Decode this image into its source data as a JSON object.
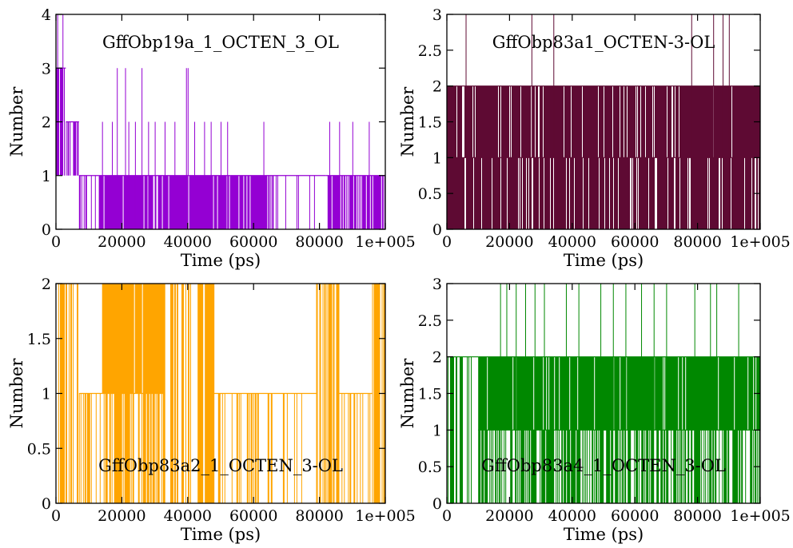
{
  "chart_data": [
    {
      "type": "line",
      "title": "GffObp19a_1_OCTEN_3_OL",
      "xlabel": "Time (ps)",
      "ylabel": "Number",
      "xlim": [
        0,
        100000
      ],
      "ylim": [
        0,
        4
      ],
      "xticks": [
        "0",
        "20000",
        "40000",
        "60000",
        "80000",
        "1e+005"
      ],
      "yticks": [
        "0",
        "1",
        "2",
        "3",
        "4"
      ],
      "color": "#9400D3",
      "grid": false,
      "series": [
        {
          "segments": [
            {
              "start": 0,
              "end": 3000,
              "base": 1,
              "hi": 3,
              "density": 0.7
            },
            {
              "start": 3000,
              "end": 7000,
              "base": 1,
              "hi": 2,
              "density": 0.6
            },
            {
              "start": 7000,
              "end": 13000,
              "base": 0,
              "hi": 1,
              "density": 0.4
            },
            {
              "start": 13000,
              "end": 53000,
              "base": 0,
              "hi": 1,
              "density": 0.9
            },
            {
              "start": 53000,
              "end": 66000,
              "base": 0,
              "hi": 1,
              "density": 0.85
            },
            {
              "start": 66000,
              "end": 82000,
              "base": 0,
              "hi": 1,
              "density": 0.15
            },
            {
              "start": 82000,
              "end": 100000,
              "base": 0,
              "hi": 1,
              "density": 0.75
            }
          ],
          "spikes": [
            {
              "x": 400,
              "y": 4
            },
            {
              "x": 2000,
              "y": 4
            },
            {
              "x": 18500,
              "y": 3
            },
            {
              "x": 21000,
              "y": 3
            },
            {
              "x": 26000,
              "y": 3
            },
            {
              "x": 39500,
              "y": 3
            },
            {
              "x": 40000,
              "y": 3
            },
            {
              "x": 14000,
              "y": 2
            },
            {
              "x": 17000,
              "y": 2
            },
            {
              "x": 22000,
              "y": 2
            },
            {
              "x": 24000,
              "y": 2
            },
            {
              "x": 28000,
              "y": 2
            },
            {
              "x": 30000,
              "y": 2
            },
            {
              "x": 33000,
              "y": 2
            },
            {
              "x": 36000,
              "y": 2
            },
            {
              "x": 42000,
              "y": 2
            },
            {
              "x": 45000,
              "y": 2
            },
            {
              "x": 47000,
              "y": 2
            },
            {
              "x": 50000,
              "y": 2
            },
            {
              "x": 52000,
              "y": 2
            },
            {
              "x": 63000,
              "y": 2
            },
            {
              "x": 83000,
              "y": 2
            },
            {
              "x": 86000,
              "y": 2
            },
            {
              "x": 90000,
              "y": 2
            },
            {
              "x": 95000,
              "y": 2
            }
          ]
        }
      ]
    },
    {
      "type": "line",
      "title": "GffObp83a1_OCTEN-3-OL",
      "xlabel": "Time (ps)",
      "ylabel": "Number",
      "xlim": [
        0,
        100000
      ],
      "ylim": [
        0,
        3
      ],
      "xticks": [
        "0",
        "20000",
        "40000",
        "60000",
        "80000",
        "1e+005"
      ],
      "yticks": [
        "0",
        "0.5",
        "1",
        "1.5",
        "2",
        "2.5",
        "3"
      ],
      "color": "#5E0A33",
      "grid": false,
      "series": [
        {
          "segments": [
            {
              "start": 0,
              "end": 100000,
              "base": 1,
              "hi": 2,
              "density": 0.9
            },
            {
              "start": 0,
              "end": 100000,
              "base": 0,
              "hi": 1,
              "density": 0.88
            }
          ],
          "spikes": [
            {
              "x": 6000,
              "y": 3
            },
            {
              "x": 27000,
              "y": 3
            },
            {
              "x": 34000,
              "y": 3
            },
            {
              "x": 78000,
              "y": 3
            },
            {
              "x": 85000,
              "y": 3
            },
            {
              "x": 88000,
              "y": 3
            },
            {
              "x": 90000,
              "y": 3
            }
          ]
        }
      ]
    },
    {
      "type": "line",
      "title": "GffObp83a2_1_OCTEN_3-OL",
      "xlabel": "Time (ps)",
      "ylabel": "Number",
      "xlim": [
        0,
        100000
      ],
      "ylim": [
        0,
        2
      ],
      "xticks": [
        "0",
        "20000",
        "40000",
        "60000",
        "80000",
        "1e+005"
      ],
      "yticks": [
        "0",
        "0.5",
        "1",
        "1.5",
        "2"
      ],
      "color": "#FFA500",
      "grid": false,
      "series": [
        {
          "segments": [
            {
              "start": 0,
              "end": 7000,
              "base": 0,
              "hi": 2,
              "density": 0.5
            },
            {
              "start": 7000,
              "end": 14000,
              "base": 0,
              "hi": 1,
              "density": 0.3
            },
            {
              "start": 14000,
              "end": 33000,
              "base": 1,
              "hi": 2,
              "density": 0.95
            },
            {
              "start": 14000,
              "end": 33000,
              "base": 0,
              "hi": 1,
              "density": 0.6
            },
            {
              "start": 33000,
              "end": 43000,
              "base": 0,
              "hi": 2,
              "density": 0.5
            },
            {
              "start": 43000,
              "end": 48000,
              "base": 0,
              "hi": 2,
              "density": 0.95
            },
            {
              "start": 48000,
              "end": 66000,
              "base": 0,
              "hi": 1,
              "density": 0.35
            },
            {
              "start": 66000,
              "end": 79000,
              "base": 0,
              "hi": 1,
              "density": 0.1
            },
            {
              "start": 79000,
              "end": 86000,
              "base": 0,
              "hi": 2,
              "density": 0.7
            },
            {
              "start": 86000,
              "end": 96000,
              "base": 0,
              "hi": 1,
              "density": 0.3
            },
            {
              "start": 96000,
              "end": 100000,
              "base": 0,
              "hi": 2,
              "density": 0.7
            }
          ],
          "spikes": []
        }
      ]
    },
    {
      "type": "line",
      "title": "GffObp83a4_1_OCTEN_3-OL",
      "xlabel": "Time (ps)",
      "ylabel": "Number",
      "xlim": [
        0,
        100000
      ],
      "ylim": [
        0,
        3
      ],
      "xticks": [
        "0",
        "20000",
        "40000",
        "60000",
        "80000",
        "1e+005"
      ],
      "yticks": [
        "0",
        "0.5",
        "1",
        "1.5",
        "2",
        "2.5",
        "3"
      ],
      "color": "#008800",
      "grid": false,
      "series": [
        {
          "segments": [
            {
              "start": 0,
              "end": 10000,
              "base": 0,
              "hi": 2,
              "density": 0.5
            },
            {
              "start": 10000,
              "end": 100000,
              "base": 1,
              "hi": 2,
              "density": 0.9
            },
            {
              "start": 10000,
              "end": 100000,
              "base": 0,
              "hi": 1,
              "density": 0.55
            }
          ],
          "spikes": [
            {
              "x": 17000,
              "y": 3
            },
            {
              "x": 19000,
              "y": 3
            },
            {
              "x": 22000,
              "y": 3
            },
            {
              "x": 25000,
              "y": 3
            },
            {
              "x": 28000,
              "y": 3
            },
            {
              "x": 31000,
              "y": 3
            },
            {
              "x": 38000,
              "y": 3
            },
            {
              "x": 42000,
              "y": 3
            },
            {
              "x": 49000,
              "y": 3
            },
            {
              "x": 53000,
              "y": 3
            },
            {
              "x": 57000,
              "y": 3
            },
            {
              "x": 62000,
              "y": 3
            },
            {
              "x": 66000,
              "y": 3
            },
            {
              "x": 70000,
              "y": 3
            },
            {
              "x": 79000,
              "y": 3
            },
            {
              "x": 84000,
              "y": 3
            },
            {
              "x": 86000,
              "y": 3
            },
            {
              "x": 93000,
              "y": 3
            }
          ]
        }
      ]
    }
  ]
}
